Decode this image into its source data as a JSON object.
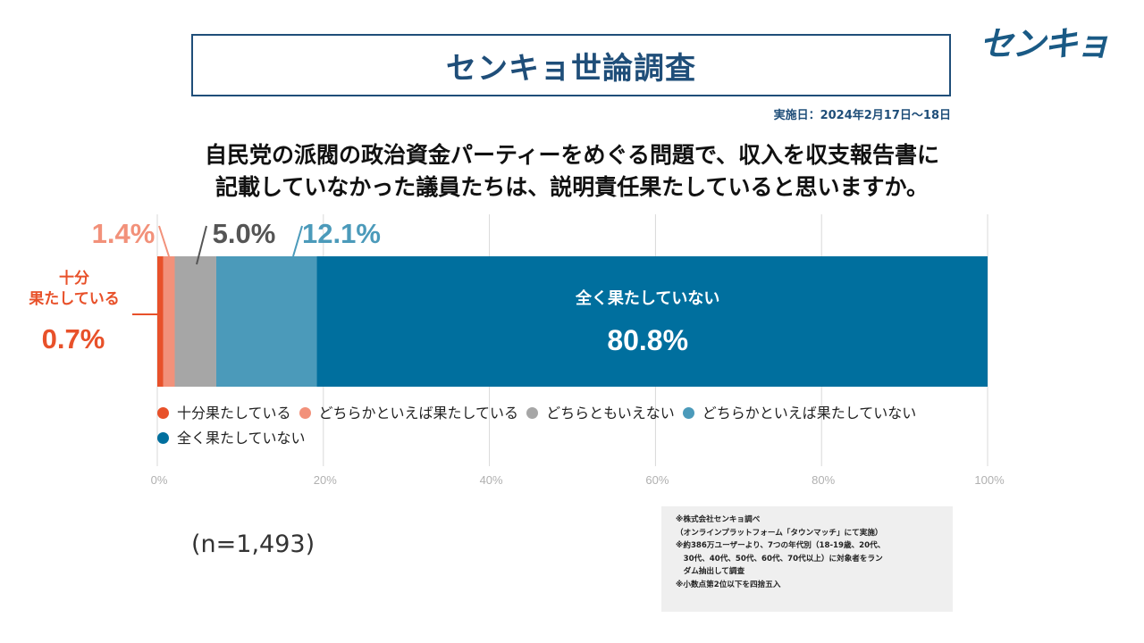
{
  "header": {
    "title": "センキョ世論調査",
    "logo_text": "センキョ",
    "date": "実施日：2024年2月17日〜18日"
  },
  "question": [
    "自民党の派閥の政治資金パーティーをめぐる問題で、収入を収支報告書に",
    "記載していなかった議員たちは、説明責任果たしていると思いますか。"
  ],
  "chart_data": {
    "type": "bar",
    "orientation": "horizontal-stacked",
    "xlim": [
      0,
      100
    ],
    "ticks": [
      "0%",
      "20%",
      "40%",
      "60%",
      "80%",
      "100%"
    ],
    "grid": true,
    "series": [
      {
        "name": "十分果たしている",
        "value": 0.7,
        "label": "0.7%",
        "color": "#e8512a",
        "callout": "十分\n果たしている"
      },
      {
        "name": "どちらかといえば果たしている",
        "value": 1.4,
        "label": "1.4%",
        "color": "#f2917a"
      },
      {
        "name": "どちらともいえない",
        "value": 5.0,
        "label": "5.0%",
        "color": "#a6a6a6"
      },
      {
        "name": "どちらかといえば果たしていない",
        "value": 12.1,
        "label": "12.1%",
        "color": "#4b9aba"
      },
      {
        "name": "全く果たしていない",
        "value": 80.8,
        "label": "80.8%",
        "color": "#006f9e",
        "inside_caption": "全く果たしていない"
      }
    ],
    "legend_position": "bottom"
  },
  "sample_size": "(n=1,493)",
  "notes": [
    "※株式会社センキョ調べ",
    "（オンラインプラットフォーム「タウンマッチ」にて実施）",
    "※約386万ユーザーより、7つの年代別（18-19歳、20代、",
    "　30代、40代、50代、60代、70代以上）に対象者をラン",
    "　ダム抽出して調査",
    "※小数点第2位以下を四捨五入"
  ]
}
